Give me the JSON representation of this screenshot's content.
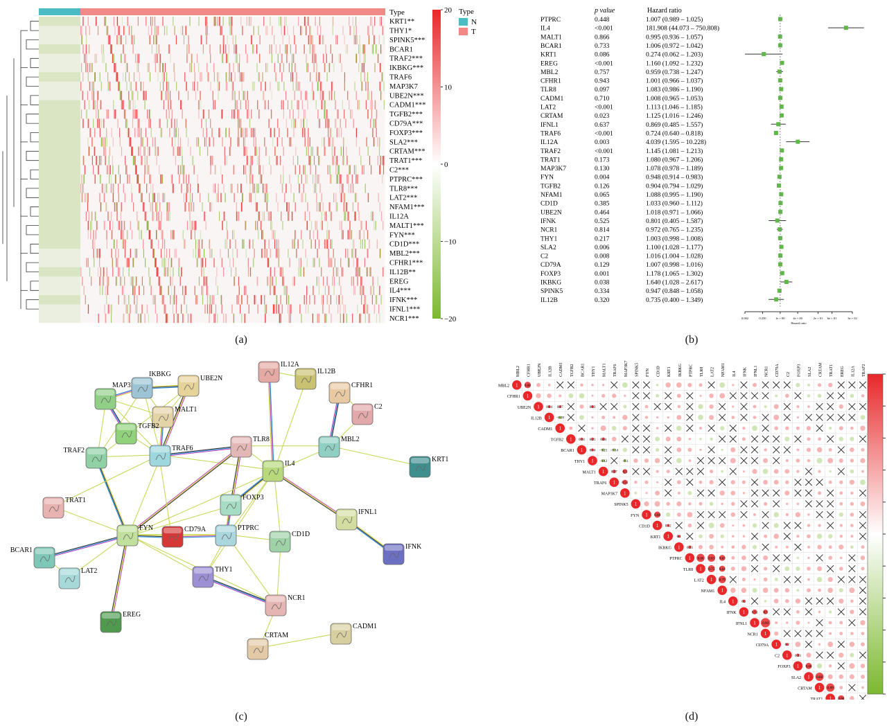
{
  "captions": {
    "a": "(a)",
    "b": "(b)",
    "c": "(c)",
    "d": "(d)"
  },
  "colors": {
    "normal": "#4bbcc4",
    "tumor": "#f08a86",
    "high": "#e8282a",
    "low": "#7cb82f",
    "mid": "#ffffff",
    "forest": "#5fb848"
  },
  "heatmap": {
    "type_label": "Type",
    "legend_title": "Type",
    "legend_items": [
      "N",
      "T"
    ],
    "scale_ticks": [
      "20",
      "10",
      "0",
      "−10",
      "−20"
    ],
    "genes": [
      "KRT1**",
      "THY1*",
      "SPINK5***",
      "BCAR1",
      "TRAF2***",
      "IKBKG***",
      "TRAF6",
      "MAP3K7",
      "UBE2N***",
      "CADM1***",
      "TGFB2***",
      "CD79A***",
      "FOXP3***",
      "SLA2***",
      "CRTAM***",
      "TRAT1***",
      "C2***",
      "PTPRC***",
      "TLR8***",
      "LAT2***",
      "NFAM1***",
      "IL12A",
      "MALT1***",
      "FYN***",
      "CD1D***",
      "MBL2***",
      "CFHR1***",
      "IL12B**",
      "EREG",
      "IL4***",
      "IFNK***",
      "IFNL1***",
      "NCR1***"
    ]
  },
  "forest": {
    "headers": {
      "gene": "",
      "p": "p value",
      "hr": "Hazard ratio"
    },
    "rows": [
      {
        "gene": "PTPRC",
        "p": "0.448",
        "hr": "1.007 (0.989 – 1.025)"
      },
      {
        "gene": "IL4",
        "p": "<0.001",
        "hr": "181.908 (44.073 – 750.808)"
      },
      {
        "gene": "MALT1",
        "p": "0.866",
        "hr": "0.995 (0.936 – 1.057)"
      },
      {
        "gene": "BCAR1",
        "p": "0.733",
        "hr": "1.006 (0.972 – 1.042)"
      },
      {
        "gene": "KRT1",
        "p": "0.086",
        "hr": "0.274 (0.062 – 1.203)"
      },
      {
        "gene": "EREG",
        "p": "<0.001",
        "hr": "1.160 (1.092 – 1.232)"
      },
      {
        "gene": "MBL2",
        "p": "0.757",
        "hr": "0.959 (0.738 – 1.247)"
      },
      {
        "gene": "CFHR1",
        "p": "0.943",
        "hr": "1.001 (0.966 – 1.037)"
      },
      {
        "gene": "TLR8",
        "p": "0.097",
        "hr": "1.083 (0.986 – 1.190)"
      },
      {
        "gene": "CADM1",
        "p": "0.710",
        "hr": "1.008 (0.965 – 1.053)"
      },
      {
        "gene": "LAT2",
        "p": "<0.001",
        "hr": "1.113 (1.046 – 1.185)"
      },
      {
        "gene": "CRTAM",
        "p": "0.023",
        "hr": "1.125 (1.016 – 1.246)"
      },
      {
        "gene": "IFNL1",
        "p": "0.637",
        "hr": "0.869 (0.485 – 1.557)"
      },
      {
        "gene": "TRAF6",
        "p": "<0.001",
        "hr": "0.724 (0.640 – 0.818)"
      },
      {
        "gene": "IL12A",
        "p": "0.003",
        "hr": "4.039 (1.595 – 10.228)"
      },
      {
        "gene": "TRAF2",
        "p": "<0.001",
        "hr": "1.145 (1.081 – 1.213)"
      },
      {
        "gene": "TRAT1",
        "p": "0.173",
        "hr": "1.080 (0.967 – 1.206)"
      },
      {
        "gene": "MAP3K7",
        "p": "0.130",
        "hr": "1.078 (0.978 – 1.189)"
      },
      {
        "gene": "FYN",
        "p": "0.004",
        "hr": "0.948 (0.914 – 0.983)"
      },
      {
        "gene": "TGFB2",
        "p": "0.126",
        "hr": "0.904 (0.794 – 1.029)"
      },
      {
        "gene": "NFAM1",
        "p": "0.065",
        "hr": "1.088 (0.995 – 1.190)"
      },
      {
        "gene": "CD1D",
        "p": "0.385",
        "hr": "1.033 (0.960 – 1.112)"
      },
      {
        "gene": "UBE2N",
        "p": "0.464",
        "hr": "1.018 (0.971 – 1.066)"
      },
      {
        "gene": "IFNK",
        "p": "0.525",
        "hr": "0.801 (0.405 – 1.587)"
      },
      {
        "gene": "NCR1",
        "p": "0.814",
        "hr": "0.972 (0.765 – 1.235)"
      },
      {
        "gene": "THY1",
        "p": "0.217",
        "hr": "1.003 (0.998 – 1.008)"
      },
      {
        "gene": "SLA2",
        "p": "0.006",
        "hr": "1.100 (1.028 – 1.177)"
      },
      {
        "gene": "C2",
        "p": "0.008",
        "hr": "1.016 (1.004 – 1.028)"
      },
      {
        "gene": "CD79A",
        "p": "0.129",
        "hr": "1.007 (0.998 – 1.016)"
      },
      {
        "gene": "FOXP3",
        "p": "0.001",
        "hr": "1.178 (1.065 – 1.302)"
      },
      {
        "gene": "IKBKG",
        "p": "0.038",
        "hr": "1.640 (1.028 – 2.617)"
      },
      {
        "gene": "SPINK5",
        "p": "0.334",
        "hr": "0.947 (0.848 – 1.058)"
      },
      {
        "gene": "IL12B",
        "p": "0.320",
        "hr": "0.735 (0.400 – 1.349)"
      }
    ],
    "axis_ticks": [
      "0.062",
      "0.250",
      "1e + 00",
      "4e + 00",
      "2e + 01",
      "6e + 01",
      "3e + 02"
    ],
    "axis_title": "Hazard ratio"
  },
  "network": {
    "nodes": [
      {
        "id": "IL12A",
        "color": "#e5a9a4"
      },
      {
        "id": "IL12B",
        "color": "#c9c270"
      },
      {
        "id": "CFHR1",
        "color": "#e8c9a2"
      },
      {
        "id": "C2",
        "color": "#e2a8aa"
      },
      {
        "id": "MAP3K7",
        "color": "#8fcf86"
      },
      {
        "id": "IKBKG",
        "color": "#9cc4d4"
      },
      {
        "id": "UBE2N",
        "color": "#e6d39a"
      },
      {
        "id": "MALT1",
        "color": "#e4d3a6"
      },
      {
        "id": "TGFB2",
        "color": "#8fd27a"
      },
      {
        "id": "TRAF2",
        "color": "#8fd0a4"
      },
      {
        "id": "TRAF6",
        "color": "#9fd7de"
      },
      {
        "id": "TLR8",
        "color": "#e3b7b5"
      },
      {
        "id": "MBL2",
        "color": "#8fd0c3"
      },
      {
        "id": "IL4",
        "color": "#b7d97c"
      },
      {
        "id": "KRT1",
        "color": "#3f8f8f"
      },
      {
        "id": "TRAT1",
        "color": "#e8b2b0"
      },
      {
        "id": "FOXP3",
        "color": "#a7dcc4"
      },
      {
        "id": "IFNL1",
        "color": "#d4dda1"
      },
      {
        "id": "BCAR1",
        "color": "#7fc7b6"
      },
      {
        "id": "FYN",
        "color": "#c1e09e"
      },
      {
        "id": "CD79A",
        "color": "#d63838"
      },
      {
        "id": "PTPRC",
        "color": "#a9d7dd"
      },
      {
        "id": "CD1D",
        "color": "#9fd2a7"
      },
      {
        "id": "IFNK",
        "color": "#6d6fc2"
      },
      {
        "id": "LAT2",
        "color": "#a7d9d9"
      },
      {
        "id": "THY1",
        "color": "#9d8fd4"
      },
      {
        "id": "NCR1",
        "color": "#e5b5b3"
      },
      {
        "id": "EREG",
        "color": "#4f9a4f"
      },
      {
        "id": "CADM1",
        "color": "#d8cfa0"
      },
      {
        "id": "CRTAM",
        "color": "#e3c9a6"
      }
    ]
  },
  "corr": {
    "genes": [
      "MBL2",
      "CFHR1",
      "UBE2N",
      "IL12B",
      "CADM1",
      "TGFB2",
      "BCAR1",
      "THY1",
      "MALT1",
      "TRAF6",
      "MAP3K7",
      "SPINK5",
      "FYN",
      "CD1D",
      "KRT1",
      "IKBKG",
      "PTPRC",
      "TLR8",
      "LAT2",
      "NFAM1",
      "IL4",
      "IFNK",
      "IFNL1",
      "NCR1",
      "CD79A",
      "C2",
      "FOXP3",
      "SLA2",
      "CRTAM",
      "TRAT1",
      "EREG",
      "IL12A",
      "TRAF2"
    ],
    "diag_label": "1",
    "sample_values": {
      "MBL2-CFHR1": "0.68",
      "UBE2N-IL12B": "0.14",
      "UBE2N-CADM1": "0.17",
      "UBE2N-THY1": "0.13",
      "IL12B-CADM1": "−0.09",
      "TGFB2-BCAR1": "0.14",
      "TGFB2-THY1": "0.21",
      "TGFB2-MALT1": "0.34",
      "BCAR1-THY1": "0.14",
      "BCAR1-MALT1": "−0.21",
      "BCAR1-TRAF6": "−0.14",
      "THY1-MALT1": "−0.12",
      "THY1-MAP3K7": "−0.1",
      "MALT1-TRAF6": "0.37",
      "MALT1-MAP3K7": "0.5",
      "TRAF6-MAP3K7": "0.53",
      "FYN-CD1D": "0.66",
      "CD1D-KRT1": "0.12",
      "KRT1-IKBKG": "0.1",
      "IKBKG-PTPRC": "0.33",
      "PTPRC-TLR8": "0.86",
      "PTPRC-LAT2": "0.83",
      "PTPRC-NFAM1": "0.63",
      "TLR8-LAT2": "0.75",
      "TLR8-NFAM1": "0.64",
      "LAT2-NFAM1": "0.79",
      "IL4-IFNK": "0.2",
      "IFNK-IFNL1": "0.51",
      "IFNK-NCR1": "0.5",
      "IFNL1-NCR1": "0.99",
      "CD79A-C2": "0.2",
      "C2-FOXP3": "0.33",
      "FOXP3-SLA2": "0.66",
      "SLA2-CRTAM": "0.88",
      "CRTAM-TRAT1": "0.89",
      "TRAT1-EREG": "0.66",
      "EREG-IL12A": "0.21",
      "IL12A-TRAF2": "0.31"
    }
  }
}
